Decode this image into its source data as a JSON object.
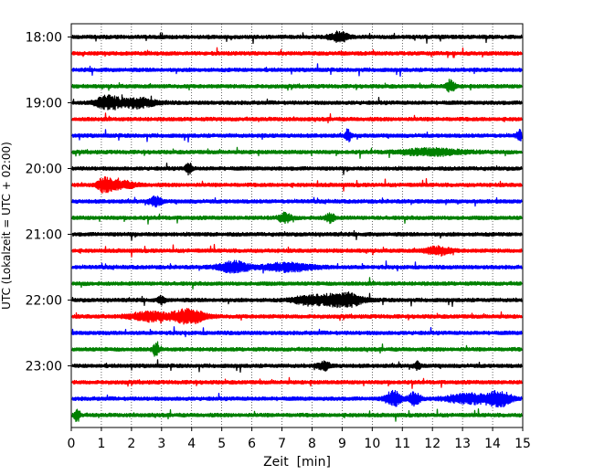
{
  "chart_data": {
    "type": "line",
    "title": "",
    "xlabel": "Zeit  [min]",
    "ylabel": "UTC (Lokalzeit = UTC + 02:00)",
    "xlim": [
      0,
      15
    ],
    "x_ticks": [
      "0",
      "1",
      "2",
      "3",
      "4",
      "5",
      "6",
      "7",
      "8",
      "9",
      "10",
      "11",
      "12",
      "13",
      "14",
      "15"
    ],
    "y_ticks": [
      "18:00",
      "19:00",
      "20:00",
      "21:00",
      "22:00",
      "23:00"
    ],
    "grid": "vertical dotted lines at each minute",
    "colors": [
      "#000000",
      "#ff0000",
      "#0000ff",
      "#008000"
    ],
    "series": [
      {
        "start": "18:00",
        "color": "#000000",
        "bursts": [
          [
            8.9,
            0.3,
            0.6
          ]
        ]
      },
      {
        "start": "18:15",
        "color": "#ff0000",
        "bursts": []
      },
      {
        "start": "18:30",
        "color": "#0000ff",
        "bursts": []
      },
      {
        "start": "18:45",
        "color": "#008000",
        "bursts": [
          [
            12.6,
            0.15,
            0.7
          ]
        ]
      },
      {
        "start": "19:00",
        "color": "#000000",
        "bursts": [
          [
            1.2,
            0.35,
            1.0
          ],
          [
            2.2,
            0.6,
            0.6
          ]
        ]
      },
      {
        "start": "19:15",
        "color": "#ff0000",
        "bursts": []
      },
      {
        "start": "19:30",
        "color": "#0000ff",
        "bursts": [
          [
            9.2,
            0.1,
            0.7
          ],
          [
            14.9,
            0.1,
            0.7
          ]
        ]
      },
      {
        "start": "19:45",
        "color": "#008000",
        "bursts": [
          [
            12.0,
            1.0,
            0.4
          ]
        ]
      },
      {
        "start": "20:00",
        "color": "#000000",
        "bursts": [
          [
            3.9,
            0.1,
            0.8
          ]
        ]
      },
      {
        "start": "20:15",
        "color": "#ff0000",
        "bursts": [
          [
            1.1,
            0.2,
            0.9
          ],
          [
            1.6,
            0.5,
            0.5
          ]
        ]
      },
      {
        "start": "20:30",
        "color": "#0000ff",
        "bursts": [
          [
            2.8,
            0.2,
            0.6
          ]
        ]
      },
      {
        "start": "20:45",
        "color": "#008000",
        "bursts": [
          [
            7.1,
            0.2,
            0.6
          ],
          [
            8.6,
            0.15,
            0.6
          ]
        ]
      },
      {
        "start": "21:00",
        "color": "#000000",
        "bursts": []
      },
      {
        "start": "21:15",
        "color": "#ff0000",
        "bursts": [
          [
            12.2,
            0.4,
            0.5
          ]
        ]
      },
      {
        "start": "21:30",
        "color": "#0000ff",
        "bursts": [
          [
            5.4,
            0.5,
            0.7
          ],
          [
            7.2,
            0.8,
            0.5
          ]
        ]
      },
      {
        "start": "21:45",
        "color": "#008000",
        "bursts": []
      },
      {
        "start": "22:00",
        "color": "#000000",
        "bursts": [
          [
            9.0,
            0.6,
            1.0
          ],
          [
            7.9,
            0.5,
            0.6
          ],
          [
            3.0,
            0.1,
            0.6
          ]
        ]
      },
      {
        "start": "22:15",
        "color": "#ff0000",
        "bursts": [
          [
            3.9,
            0.5,
            1.0
          ],
          [
            2.6,
            0.6,
            0.6
          ]
        ]
      },
      {
        "start": "22:30",
        "color": "#0000ff",
        "bursts": []
      },
      {
        "start": "22:45",
        "color": "#008000",
        "bursts": [
          [
            2.8,
            0.1,
            0.8
          ]
        ]
      },
      {
        "start": "23:00",
        "color": "#000000",
        "bursts": [
          [
            8.4,
            0.2,
            0.5
          ],
          [
            11.5,
            0.1,
            0.5
          ]
        ]
      },
      {
        "start": "23:15",
        "color": "#ff0000",
        "bursts": []
      },
      {
        "start": "23:30",
        "color": "#0000ff",
        "bursts": [
          [
            10.7,
            0.25,
            1.0
          ],
          [
            11.4,
            0.2,
            0.8
          ],
          [
            13.2,
            0.7,
            0.6
          ],
          [
            14.2,
            0.4,
            1.0
          ]
        ]
      },
      {
        "start": "23:45",
        "color": "#008000",
        "bursts": [
          [
            0.2,
            0.1,
            0.8
          ]
        ]
      }
    ]
  }
}
